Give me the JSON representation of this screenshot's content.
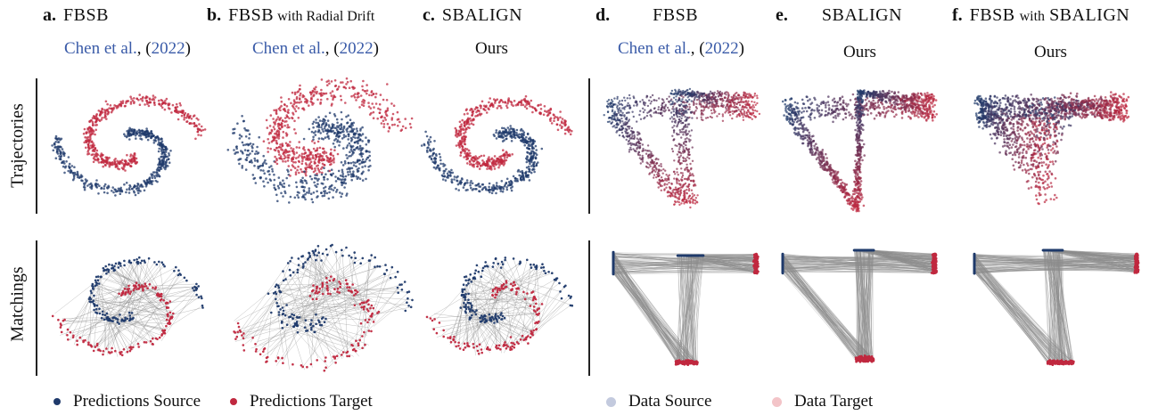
{
  "columns": [
    {
      "letter": "a.",
      "title_main": "FBSB",
      "title_rest": "",
      "subtitle_author": "Chen et al.",
      "subtitle_year": "2022",
      "subtitle_ours": ""
    },
    {
      "letter": "b.",
      "title_main": "FBSB",
      "title_rest": " with Radial Drift",
      "subtitle_author": "Chen et al.",
      "subtitle_year": "2022",
      "subtitle_ours": ""
    },
    {
      "letter": "c.",
      "title_main": "SBALIGN",
      "title_rest": "",
      "subtitle_author": "",
      "subtitle_year": "",
      "subtitle_ours": "Ours"
    },
    {
      "letter": "d.",
      "title_main": "FBSB",
      "title_rest": "",
      "subtitle_author": "Chen et al.",
      "subtitle_year": "2022",
      "subtitle_ours": ""
    },
    {
      "letter": "e.",
      "title_main": "SBALIGN",
      "title_rest": "",
      "subtitle_author": "",
      "subtitle_year": "",
      "subtitle_ours": "Ours"
    },
    {
      "letter": "f.",
      "title_main": "FBSB",
      "title_with": "with",
      "title_tail": "SBALIGN",
      "subtitle_ours": "Ours"
    }
  ],
  "rows": {
    "top": "Trajectories",
    "bottom": "Matchings"
  },
  "legend": {
    "pred_source": "Predictions Source",
    "pred_target": "Predictions Target",
    "data_source": "Data Source",
    "data_target": "Data Target"
  },
  "colors": {
    "source": "#1f3a6b",
    "target": "#c0283f",
    "data_source": "#c3cade",
    "data_target": "#f3c4c8",
    "match_line": "#8c8c8c",
    "link": "#3a5ba8"
  }
}
